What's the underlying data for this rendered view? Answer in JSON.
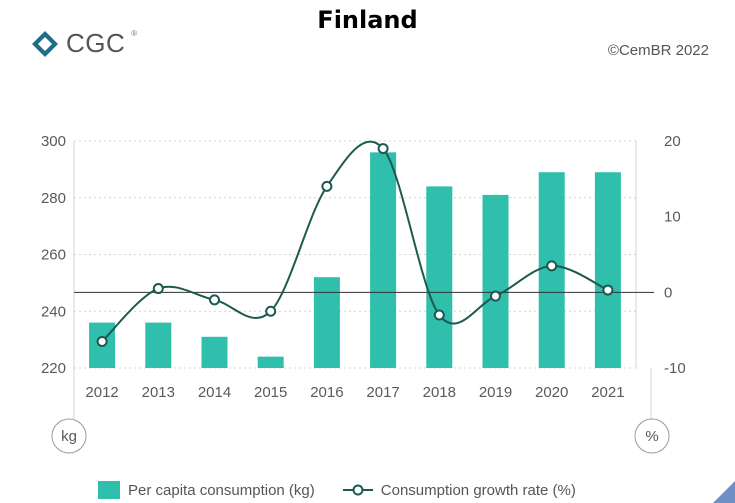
{
  "header": {
    "title": "Finland",
    "logo_text": "CGC",
    "logo_reg": "®",
    "copyright": "©CemBR 2022"
  },
  "colors": {
    "bar": "#2fbfac",
    "line": "#1c5a4f",
    "grid": "#d4d4d4",
    "zero_line": "#333333",
    "logo": "#1f6e88"
  },
  "chart_data": {
    "type": "bar+line",
    "categories": [
      "2012",
      "2013",
      "2014",
      "2015",
      "2016",
      "2017",
      "2018",
      "2019",
      "2020",
      "2021"
    ],
    "series": [
      {
        "name": "Per capita consumption (kg)",
        "type": "bar",
        "axis": "left",
        "values": [
          236,
          236,
          231,
          224,
          252,
          296,
          284,
          281,
          289,
          289
        ]
      },
      {
        "name": "Consumption growth rate (%)",
        "type": "line",
        "axis": "right",
        "values": [
          -6.5,
          0.5,
          -1,
          -2.5,
          14,
          19,
          -3,
          -0.5,
          3.5,
          0.3
        ]
      }
    ],
    "left_axis": {
      "unit_label": "kg",
      "ticks": [
        220,
        240,
        260,
        280,
        300
      ],
      "ylim": [
        220,
        300
      ]
    },
    "right_axis": {
      "unit_label": "%",
      "ticks": [
        -10,
        0,
        10,
        20
      ],
      "ylim": [
        -10,
        20
      ]
    },
    "grid": true,
    "legend_position": "bottom"
  }
}
